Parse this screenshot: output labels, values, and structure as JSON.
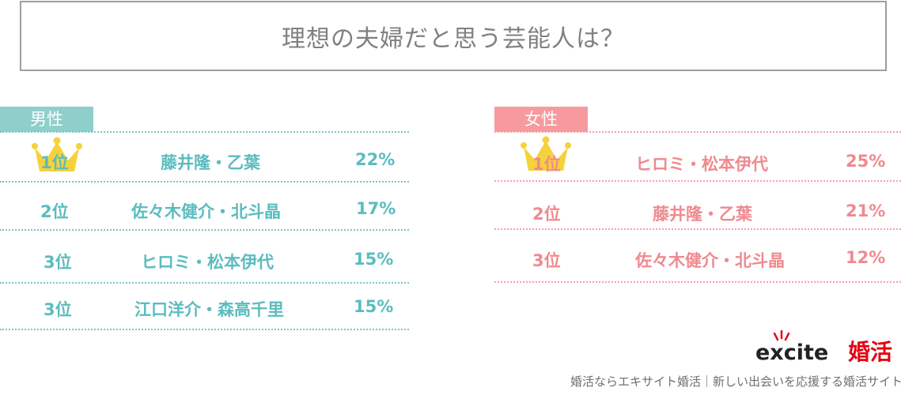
{
  "title": "理想の夫婦だと思う芸能人は？",
  "male": {
    "label": "男性",
    "rows": [
      {
        "rank": "1位",
        "names": "藤井隆・乙葉",
        "pct": "22%"
      },
      {
        "rank": "2位",
        "names": "佐々木健介・北斗晶",
        "pct": "17%"
      },
      {
        "rank": "3位",
        "names": "ヒロミ・松本伊代",
        "pct": "15%"
      },
      {
        "rank": "3位",
        "names": "江口洋介・森高千里",
        "pct": "15%"
      }
    ]
  },
  "female": {
    "label": "女性",
    "rows": [
      {
        "rank": "1位",
        "names": "ヒロミ・松本伊代",
        "pct": "25%"
      },
      {
        "rank": "2位",
        "names": "藤井隆・乙葉",
        "pct": "21%"
      },
      {
        "rank": "3位",
        "names": "佐々木健介・北斗晶",
        "pct": "12%"
      }
    ]
  },
  "logo": {
    "brand": "excite",
    "service": "婚活"
  },
  "footer": "婚活ならエキサイト婚活｜新しい出会いを応援する婚活サイト",
  "colors": {
    "male_accent": "#5bbcbf",
    "female_accent": "#ef8a8f",
    "male_label_bg": "#8ecfcb",
    "female_label_bg": "#f79a9e",
    "crown": "#f6d23a",
    "logo_red": "#e60012"
  },
  "icons": {
    "crown": "crown-icon"
  }
}
